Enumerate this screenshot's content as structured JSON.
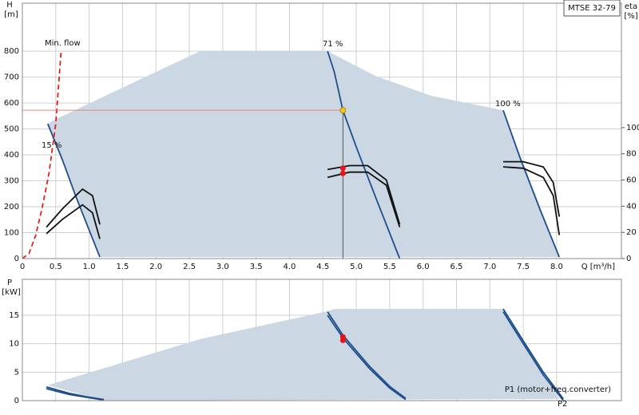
{
  "chart_data": [
    {
      "type": "line",
      "label": "MTSE 32-79",
      "ylabel": "H",
      "yunit": "[m]",
      "y2label": "eta",
      "y2unit": "[%]",
      "xlabel": "Q [m³/h]",
      "xlim": [
        0,
        8.97
      ],
      "xticks": [
        0,
        0.5,
        {
          "value": 1,
          "label": "1.0"
        },
        1.5,
        {
          "value": 2,
          "label": "2.0"
        },
        2.5,
        {
          "value": 3,
          "label": "3.0"
        },
        3.5,
        {
          "value": 4,
          "label": "4.0"
        },
        4.5,
        {
          "value": 5,
          "label": "5.0"
        },
        5.5,
        {
          "value": 6,
          "label": "6.0"
        },
        6.5,
        {
          "value": 7,
          "label": "7.0"
        },
        7.5,
        {
          "value": 8,
          "label": "8.0"
        }
      ],
      "ylim": [
        0,
        985
      ],
      "yticks": [
        0,
        100,
        200,
        300,
        400,
        500,
        600,
        700,
        800
      ],
      "y2lim": [
        0,
        195
      ],
      "y2ticks": [
        0,
        20,
        40,
        60,
        80,
        100
      ],
      "grid": true,
      "annotations": [
        "Min. flow",
        "71 %",
        "100 %",
        "15 %"
      ],
      "series": [
        {
          "fill": true,
          "color": "#cbd8e4",
          "x": [
            0.38,
            0.48,
            2.66,
            4.57,
            5.29,
            6.12,
            7.2,
            8.04,
            1.16
          ],
          "values": [
            520,
            535,
            800,
            800,
            704,
            628,
            572,
            6,
            6
          ]
        },
        {
          "color": "#1f4e8c",
          "x": [
            0.38,
            0.6,
            0.8,
            1.0,
            1.16
          ],
          "values": [
            520,
            380,
            240,
            110,
            6
          ]
        },
        {
          "color": "#1f4e8c",
          "x": [
            4.57,
            4.67,
            4.8,
            5.0,
            5.3,
            5.65
          ],
          "values": [
            800,
            720,
            572,
            430,
            230,
            0
          ]
        },
        {
          "color": "#1f4e8c",
          "x": [
            7.2,
            7.45,
            7.75,
            8.04
          ],
          "values": [
            572,
            390,
            190,
            6
          ]
        },
        {
          "color": "#e0221a",
          "dash": true,
          "x": [
            0,
            0.1,
            0.2,
            0.3,
            0.4,
            0.5,
            0.58
          ],
          "values": [
            0,
            20,
            90,
            200,
            330,
            520,
            800
          ]
        },
        {
          "color": "#111",
          "axis": "y2",
          "x": [
            0.36,
            0.6,
            0.9,
            1.05,
            1.16
          ],
          "values": [
            24,
            38,
            53,
            48,
            26
          ]
        },
        {
          "color": "#111",
          "axis": "y2",
          "x": [
            0.36,
            0.6,
            0.9,
            1.05,
            1.16
          ],
          "values": [
            19,
            30,
            41,
            35,
            15
          ]
        },
        {
          "color": "#111",
          "axis": "y2",
          "x": [
            4.57,
            4.9,
            5.17,
            5.45,
            5.65
          ],
          "values": [
            68,
            71,
            71,
            60,
            26
          ]
        },
        {
          "color": "#111",
          "axis": "y2",
          "x": [
            4.57,
            4.9,
            5.17,
            5.45,
            5.65
          ],
          "values": [
            62,
            66,
            66,
            56,
            24
          ]
        },
        {
          "color": "#111",
          "axis": "y2",
          "x": [
            7.2,
            7.5,
            7.8,
            7.95,
            8.04
          ],
          "values": [
            74,
            74,
            70,
            58,
            32
          ]
        },
        {
          "color": "#111",
          "axis": "y2",
          "x": [
            7.2,
            7.5,
            7.8,
            7.95,
            8.04
          ],
          "values": [
            70,
            69,
            62,
            48,
            18
          ]
        }
      ],
      "points": [
        {
          "x": 4.8,
          "y": 572,
          "color": "#f5c518"
        },
        {
          "x": 4.8,
          "y": 69,
          "axis": "y2",
          "color": "#e8141a"
        },
        {
          "x": 4.8,
          "y": 65,
          "axis": "y2",
          "color": "#e8141a"
        }
      ]
    },
    {
      "type": "line",
      "ylabel": "P",
      "yunit": "[kW]",
      "ylim": [
        0,
        21.3
      ],
      "yticks": [
        0,
        5,
        10,
        15
      ],
      "grid": true,
      "annotations": [
        "P1 (motor+freq.converter)",
        "P2"
      ],
      "series": [
        {
          "fill": true,
          "color": "#cbd8e4",
          "x": [
            0.38,
            2.66,
            4.57,
            4.67,
            7.2,
            8.04,
            1.22
          ],
          "values": [
            2.7,
            10.8,
            15.7,
            16.1,
            16.1,
            0.3,
            0
          ]
        },
        {
          "color": "#1f4e8c",
          "x": [
            0.36,
            0.7,
            1.0,
            1.22
          ],
          "values": [
            2.4,
            1.3,
            0.6,
            0.2
          ]
        },
        {
          "color": "#1f4e8c",
          "x": [
            0.36,
            0.7,
            1.0,
            1.22
          ],
          "values": [
            2.1,
            1.1,
            0.5,
            0.1
          ]
        },
        {
          "color": "#1f4e8c",
          "x": [
            4.57,
            4.8,
            5.2,
            5.5,
            5.74
          ],
          "values": [
            15.6,
            11.5,
            6,
            2.5,
            0.4
          ]
        },
        {
          "color": "#1f4e8c",
          "x": [
            4.57,
            4.8,
            5.2,
            5.5,
            5.74
          ],
          "values": [
            15,
            11,
            5.6,
            2.2,
            0.2
          ]
        },
        {
          "color": "#1f4e8c",
          "x": [
            7.2,
            7.5,
            7.8,
            8.1
          ],
          "values": [
            16.1,
            10.5,
            5,
            0.3
          ]
        },
        {
          "color": "#1f4e8c",
          "x": [
            7.2,
            7.5,
            7.8,
            8.1
          ],
          "values": [
            15.6,
            10,
            4.5,
            0
          ]
        }
      ],
      "points": [
        {
          "x": 4.8,
          "y": 11.2,
          "color": "#e8141a"
        },
        {
          "x": 4.8,
          "y": 10.6,
          "color": "#e8141a"
        }
      ]
    }
  ]
}
